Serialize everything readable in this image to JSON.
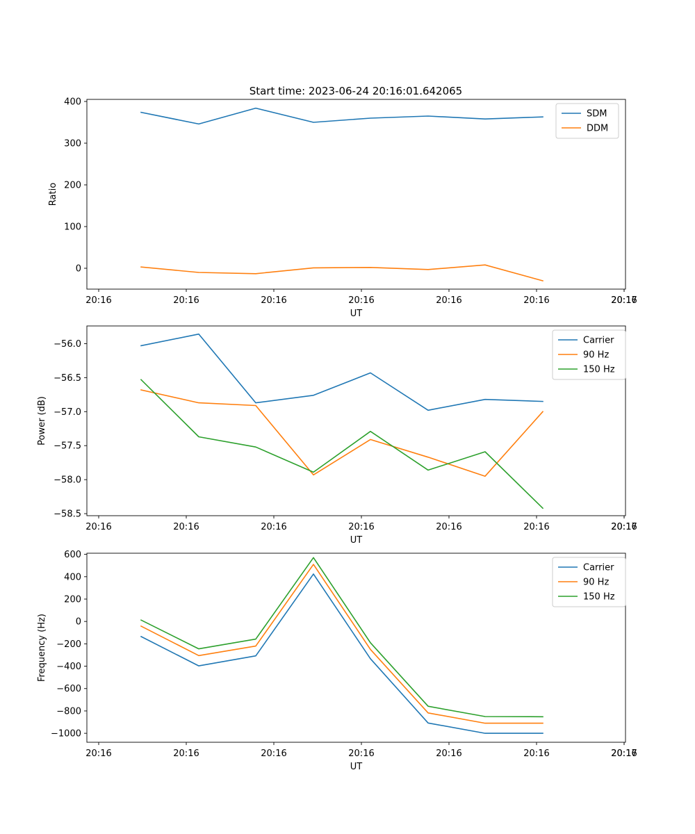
{
  "figure": {
    "title": "Start time: 2023-06-24 20:16:01.642065"
  },
  "chart_data": [
    {
      "type": "line",
      "title": "Start time: 2023-06-24 20:16:01.642065",
      "xlabel": "UT",
      "ylabel": "Ratio",
      "x_tick_labels": [
        "20:16",
        "20:16",
        "20:16",
        "20:16",
        "20:16",
        "20:16",
        "20:16"
      ],
      "x_tick_labels_right": "20:17",
      "y_ticks": [
        0,
        100,
        200,
        300,
        400
      ],
      "y_tick_labels": [
        "0",
        "100",
        "200",
        "300",
        "400"
      ],
      "ylim": [
        -50,
        405
      ],
      "legend": "top-right",
      "grid": false,
      "series": [
        {
          "name": "SDM",
          "color": "#1f77b4",
          "values": [
            374,
            346,
            384,
            350,
            360,
            365,
            358,
            363
          ]
        },
        {
          "name": "DDM",
          "color": "#ff7f0e",
          "values": [
            3,
            -10,
            -13,
            1,
            2,
            -3,
            8,
            -30
          ]
        }
      ]
    },
    {
      "type": "line",
      "xlabel": "UT",
      "ylabel": "Power (dB)",
      "x_tick_labels": [
        "20:16",
        "20:16",
        "20:16",
        "20:16",
        "20:16",
        "20:16",
        "20:16"
      ],
      "x_tick_labels_right": "20:17",
      "y_ticks": [
        -58.5,
        -58.0,
        -57.5,
        -57.0,
        -56.5,
        -56.0
      ],
      "y_tick_labels": [
        "−58.5",
        "−58.0",
        "−57.5",
        "−57.0",
        "−56.5",
        "−56.0"
      ],
      "ylim": [
        -58.53,
        -55.74
      ],
      "legend": "top-right",
      "grid": false,
      "series": [
        {
          "name": "Carrier",
          "color": "#1f77b4",
          "values": [
            -56.03,
            -55.86,
            -56.87,
            -56.76,
            -56.43,
            -56.98,
            -56.82,
            -56.85
          ]
        },
        {
          "name": "90 Hz",
          "color": "#ff7f0e",
          "values": [
            -56.68,
            -56.87,
            -56.91,
            -57.93,
            -57.41,
            -57.67,
            -57.95,
            -57.0
          ]
        },
        {
          "name": "150 Hz",
          "color": "#2ca02c",
          "values": [
            -56.53,
            -57.37,
            -57.52,
            -57.89,
            -57.29,
            -57.86,
            -57.59,
            -58.42
          ]
        }
      ]
    },
    {
      "type": "line",
      "xlabel": "UT",
      "ylabel": "Frequency (Hz)",
      "x_tick_labels": [
        "20:16",
        "20:16",
        "20:16",
        "20:16",
        "20:16",
        "20:16",
        "20:16"
      ],
      "x_tick_labels_right": "20:17",
      "y_ticks": [
        -1000,
        -800,
        -600,
        -400,
        -200,
        0,
        200,
        400,
        600
      ],
      "y_tick_labels": [
        "−1000",
        "−800",
        "−600",
        "−400",
        "−200",
        "0",
        "200",
        "400",
        "600"
      ],
      "ylim": [
        -1080,
        610
      ],
      "legend": "top-right",
      "grid": false,
      "series": [
        {
          "name": "Carrier",
          "color": "#1f77b4",
          "values": [
            -135,
            -397,
            -308,
            424,
            -333,
            -908,
            -1000,
            -1000
          ]
        },
        {
          "name": "90 Hz",
          "color": "#ff7f0e",
          "values": [
            -42,
            -305,
            -220,
            510,
            -250,
            -818,
            -910,
            -910
          ]
        },
        {
          "name": "150 Hz",
          "color": "#2ca02c",
          "values": [
            12,
            -245,
            -158,
            571,
            -190,
            -758,
            -850,
            -852
          ]
        }
      ]
    }
  ]
}
